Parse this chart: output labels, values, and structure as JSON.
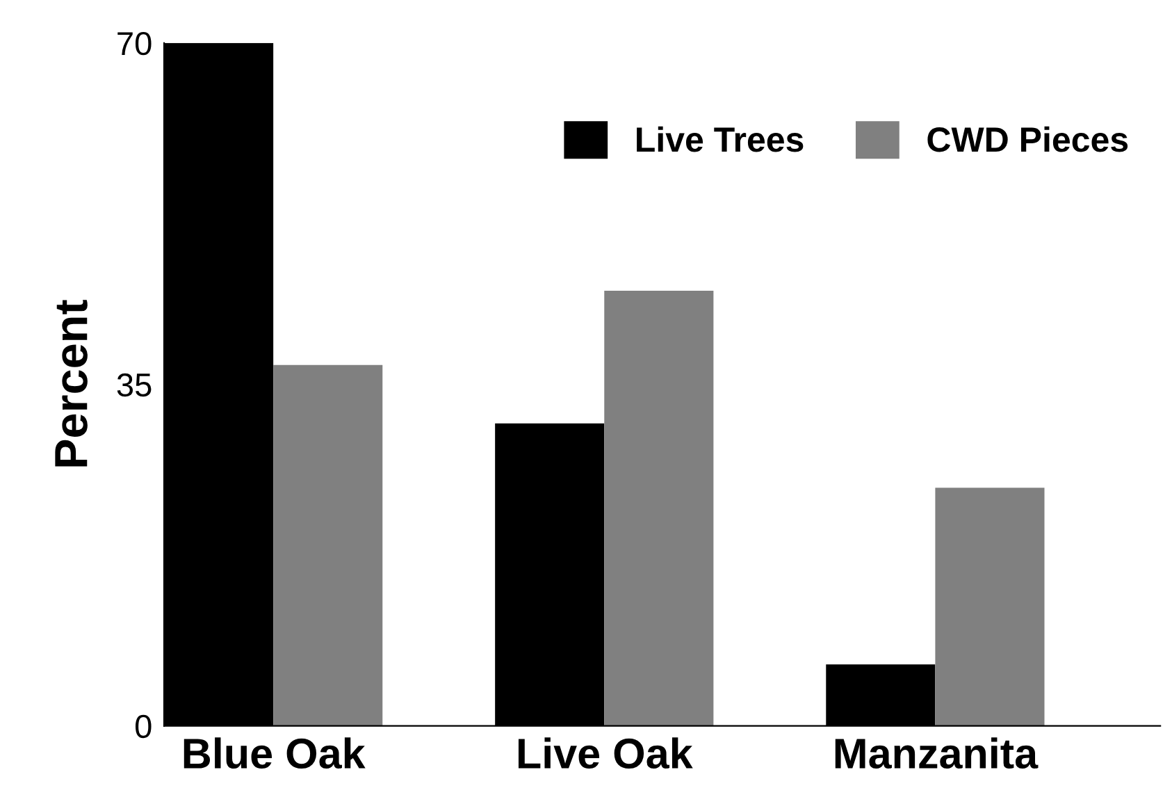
{
  "chart_data": {
    "type": "bar",
    "ylabel": "Percent",
    "categories": [
      "Blue Oak",
      "Live Oak",
      "Manzanita"
    ],
    "series": [
      {
        "name": "Live Trees",
        "color": "#000000",
        "values": [
          70,
          31,
          6.3
        ]
      },
      {
        "name": "CWD Pieces",
        "color": "#808080",
        "values": [
          37,
          44.6,
          24.4
        ]
      }
    ],
    "ylim": [
      0,
      70
    ],
    "yticks": [
      0,
      35,
      70
    ],
    "grid": false,
    "legend": "top right"
  }
}
